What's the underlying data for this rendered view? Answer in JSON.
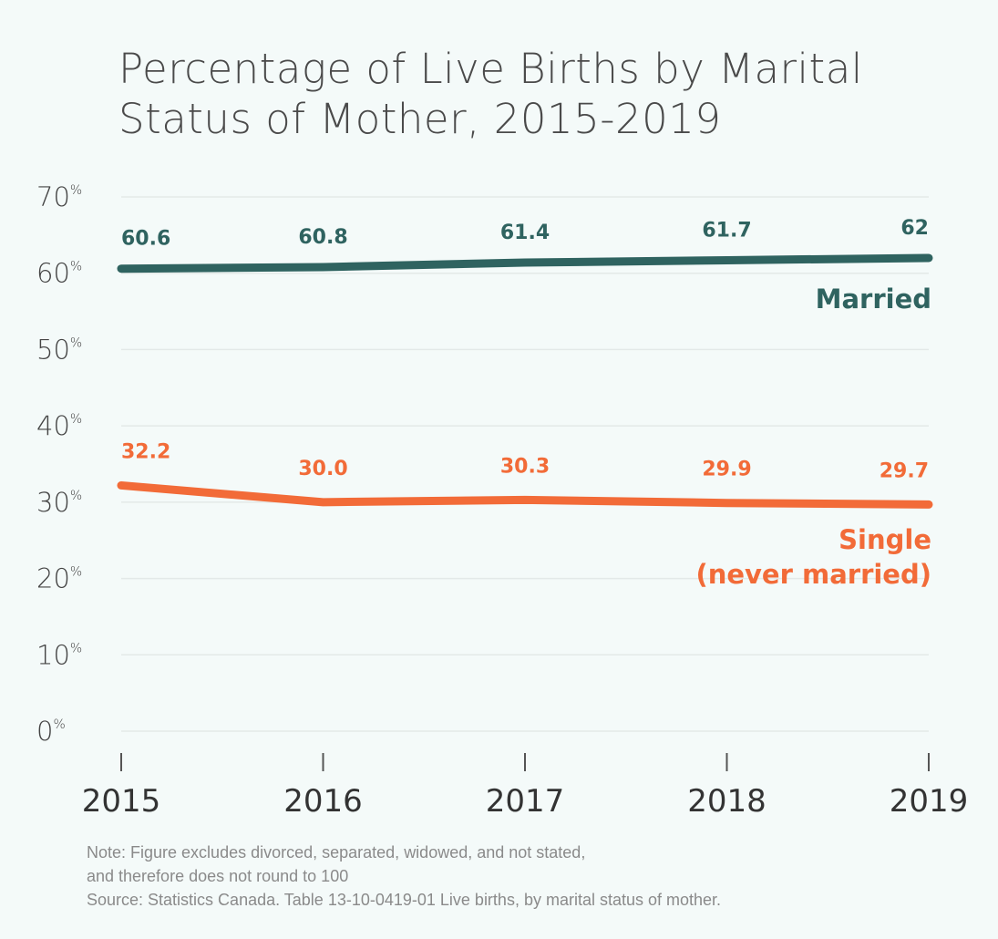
{
  "chart_data": {
    "type": "line",
    "title_lines": [
      "Percentage of Live Births by Marital",
      "Status of Mother, 2015-2019"
    ],
    "x": [
      "2015",
      "2016",
      "2017",
      "2018",
      "2019"
    ],
    "ylim": [
      0,
      70
    ],
    "yticks": [
      0,
      10,
      20,
      30,
      40,
      50,
      60,
      70
    ],
    "ytick_suffix": "%",
    "grid": true,
    "series": [
      {
        "name": "Married",
        "label_lines": [
          "Married"
        ],
        "color": "#2f6360",
        "values": [
          60.6,
          60.8,
          61.4,
          61.7,
          62
        ],
        "data_labels": [
          "60.6",
          "60.8",
          "61.4",
          "61.7",
          "62"
        ]
      },
      {
        "name": "Single (never married)",
        "label_lines": [
          "Single",
          "(never married)"
        ],
        "color": "#f26b38",
        "values": [
          32.2,
          30.0,
          30.3,
          29.9,
          29.7
        ],
        "data_labels": [
          "32.2",
          "30.0",
          "30.3",
          "29.9",
          "29.7"
        ]
      }
    ]
  },
  "notes": [
    "Note: Figure excludes divorced, separated, widowed, and not stated,",
    "and therefore does not round to 100",
    "Source: Statistics Canada. Table 13-10-0419-01 Live births, by marital status of mother."
  ]
}
